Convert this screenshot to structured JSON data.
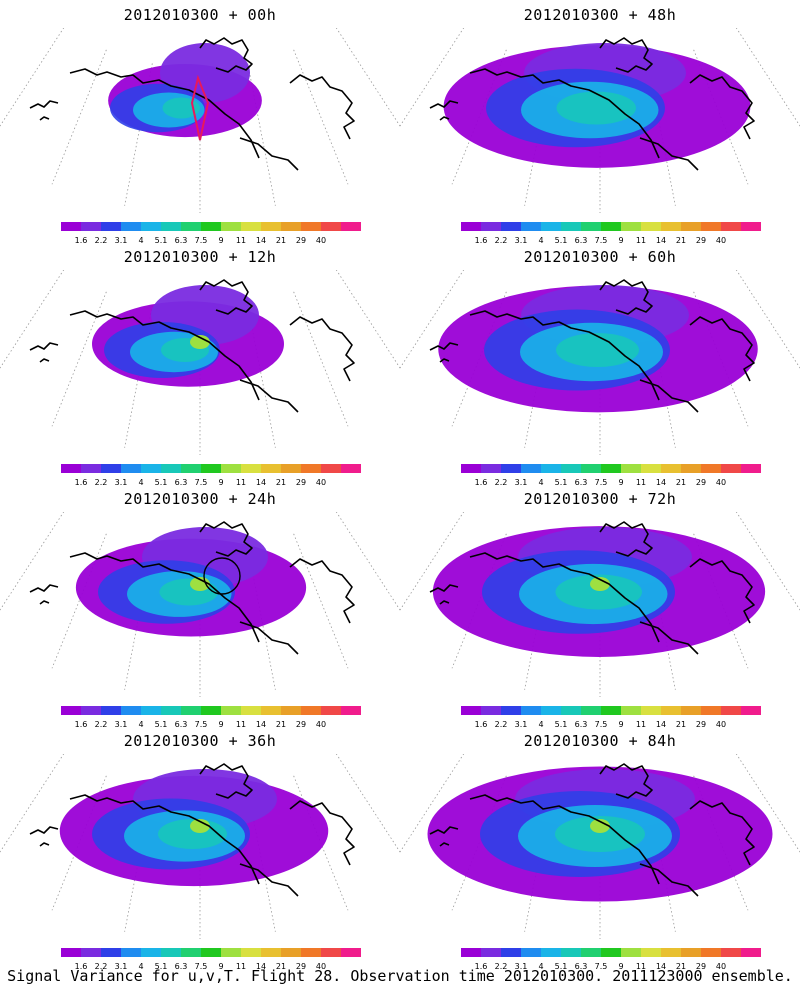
{
  "panels": [
    {
      "title": "2012010300 + 00h",
      "spread": 0.25,
      "peak": 0.45,
      "marker": "diamond"
    },
    {
      "title": "2012010300 + 12h",
      "spread": 0.4,
      "peak": 0.55,
      "marker": "none"
    },
    {
      "title": "2012010300 + 24h",
      "spread": 0.55,
      "peak": 0.6,
      "marker": "circle"
    },
    {
      "title": "2012010300 + 36h",
      "spread": 0.7,
      "peak": 0.55,
      "marker": "none"
    },
    {
      "title": "2012010300 + 48h",
      "spread": 0.85,
      "peak": 0.45,
      "marker": "none"
    },
    {
      "title": "2012010300 + 60h",
      "spread": 0.9,
      "peak": 0.5,
      "marker": "none"
    },
    {
      "title": "2012010300 + 72h",
      "spread": 0.95,
      "peak": 0.55,
      "marker": "none"
    },
    {
      "title": "2012010300 + 84h",
      "spread": 1.0,
      "peak": 0.6,
      "marker": "none"
    }
  ],
  "colorbar": {
    "colors": [
      "#9a00d6",
      "#7a2be0",
      "#2f3fe8",
      "#1f8cf0",
      "#1ab4e8",
      "#18c8b8",
      "#20d070",
      "#20c820",
      "#9ee040",
      "#d8e040",
      "#e8c030",
      "#e8a028",
      "#f07828",
      "#f04848",
      "#f01c8c"
    ],
    "labels": [
      "1.6",
      "2.2",
      "3.1",
      "4",
      "5.1",
      "6.3",
      "7.5",
      "9",
      "11",
      "14",
      "21",
      "29",
      "40"
    ]
  },
  "footer": "Signal Variance for u,v,T. Flight 28. Observation time 2012010300. 2011123000 ensemble."
}
